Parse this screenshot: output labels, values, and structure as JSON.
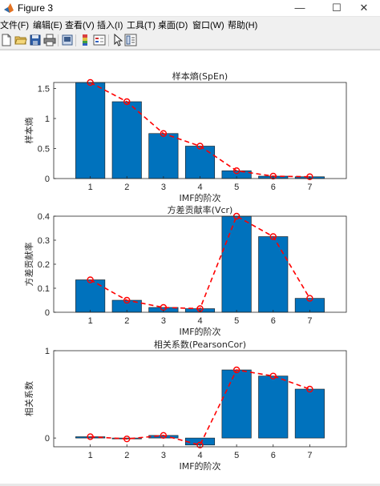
{
  "window": {
    "title": "Figure 3",
    "icon": "matlab-icon",
    "controls": {
      "minimize": "—",
      "maximize": "☐",
      "close": "✕"
    }
  },
  "menu": [
    {
      "label": "文件(F)"
    },
    {
      "label": "编辑(E)"
    },
    {
      "label": "查看(V)"
    },
    {
      "label": "插入(I)"
    },
    {
      "label": "工具(T)"
    },
    {
      "label": "桌面(D)"
    },
    {
      "label": "窗口(W)"
    },
    {
      "label": "帮助(H)"
    }
  ],
  "toolbar": [
    "new-figure-icon",
    "open-file-icon",
    "save-icon",
    "print-icon",
    "print-preview-icon",
    "insert-colorbar-icon",
    "insert-legend-icon",
    "edit-plot-arrow-icon",
    "property-inspector-icon"
  ],
  "colors": {
    "bar_fill": "#0072BD",
    "bar_edge": "#1a1a1a",
    "line": "#FF0000",
    "marker": "#FF0000",
    "axes_box": "#262626",
    "text": "#262626"
  },
  "chart_data": [
    {
      "type": "bar",
      "title": "样本熵(SpEn)",
      "xlabel": "IMF的阶次",
      "ylabel": "样本熵",
      "categories": [
        "1",
        "2",
        "3",
        "4",
        "5",
        "6",
        "7"
      ],
      "values": [
        1.6,
        1.28,
        0.75,
        0.54,
        0.13,
        0.04,
        0.03
      ],
      "overlay": {
        "type": "line",
        "style": "dashed",
        "marker": "circle",
        "values": [
          1.6,
          1.28,
          0.75,
          0.54,
          0.13,
          0.04,
          0.03
        ]
      },
      "xlim": [
        0,
        8
      ],
      "ylim": [
        0,
        1.6
      ],
      "yticks": [
        0,
        0.5,
        1,
        1.5
      ],
      "ytick_labels": [
        "0",
        "0.5",
        "1",
        "1.5"
      ],
      "grid": false
    },
    {
      "type": "bar",
      "title": "方差贡献率(Vcr)",
      "xlabel": "IMF的阶次",
      "ylabel": "方差贡献率",
      "categories": [
        "1",
        "2",
        "3",
        "4",
        "5",
        "6",
        "7"
      ],
      "values": [
        0.135,
        0.05,
        0.02,
        0.015,
        0.4,
        0.315,
        0.058
      ],
      "overlay": {
        "type": "line",
        "style": "dashed",
        "marker": "circle",
        "values": [
          0.135,
          0.05,
          0.02,
          0.015,
          0.4,
          0.315,
          0.058
        ]
      },
      "xlim": [
        0,
        8
      ],
      "ylim": [
        0,
        0.4
      ],
      "yticks": [
        0,
        0.1,
        0.2,
        0.3,
        0.4
      ],
      "ytick_labels": [
        "0",
        "0.1",
        "0.2",
        "0.3",
        "0.4"
      ],
      "grid": false
    },
    {
      "type": "bar",
      "title": "相关系数(PearsonCor)",
      "xlabel": "IMF的阶次",
      "ylabel": "相关系数",
      "categories": [
        "1",
        "2",
        "3",
        "4",
        "5",
        "6",
        "7"
      ],
      "values": [
        0.015,
        -0.01,
        0.03,
        -0.08,
        0.78,
        0.71,
        0.56
      ],
      "overlay": {
        "type": "line",
        "style": "dashed",
        "marker": "circle",
        "values": [
          0.015,
          -0.01,
          0.03,
          -0.08,
          0.78,
          0.71,
          0.56
        ]
      },
      "xlim": [
        0,
        8
      ],
      "ylim": [
        -0.1,
        1
      ],
      "yticks": [
        0,
        1
      ],
      "ytick_labels": [
        "0",
        "1"
      ],
      "grid": false
    }
  ]
}
